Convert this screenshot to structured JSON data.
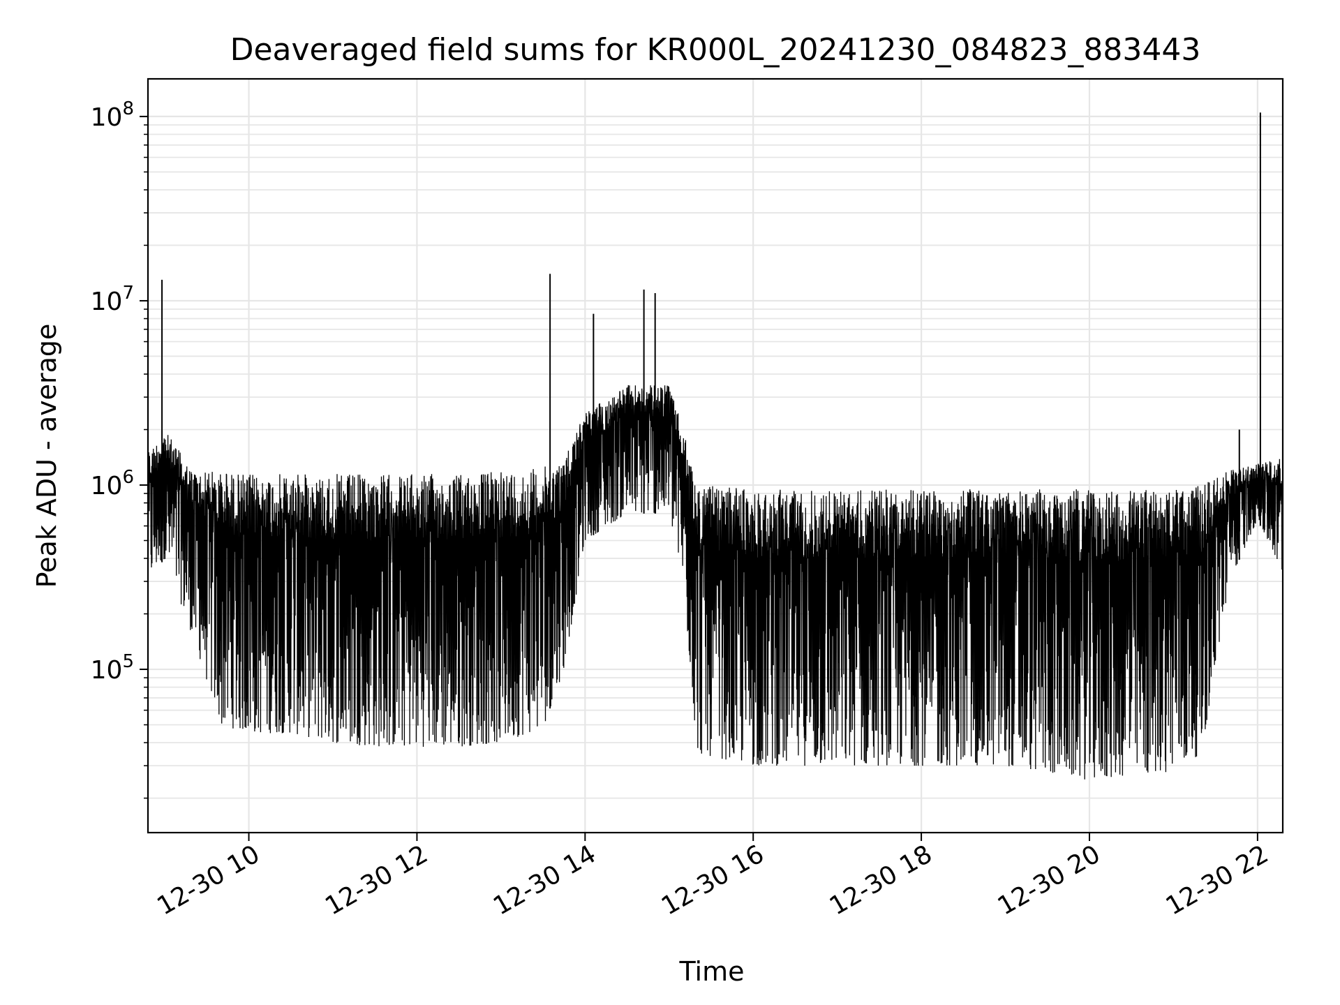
{
  "chart_data": {
    "type": "line",
    "title": "Deaveraged field sums for KR000L_20241230_084823_883443",
    "xlabel": "Time",
    "ylabel": "Peak ADU - average",
    "yscale": "log",
    "ylim": [
      13000,
      160000000
    ],
    "xlim": [
      "12-30 08:48",
      "12-30 22:18"
    ],
    "grid": true,
    "line_color": "#000000",
    "x_ticks": [
      "12-30 10",
      "12-30 12",
      "12-30 14",
      "12-30 16",
      "12-30 18",
      "12-30 20",
      "12-30 22"
    ],
    "y_ticks": [
      {
        "base": "10",
        "exp": "5",
        "value": 100000
      },
      {
        "base": "10",
        "exp": "6",
        "value": 1000000
      },
      {
        "base": "10",
        "exp": "7",
        "value": 10000000
      },
      {
        "base": "10",
        "exp": "8",
        "value": 100000000
      }
    ],
    "series": [
      {
        "values_desc": "envelope",
        "x": [
          "12-30 08:48",
          "12-30 09:00",
          "12-30 09:20",
          "12-30 09:40",
          "12-30 10:00",
          "12-30 10:30",
          "12-30 11:00",
          "12-30 11:30",
          "12-30 12:00",
          "12-30 12:30",
          "12-30 13:00",
          "12-30 13:30",
          "12-30 13:45",
          "12-30 14:00",
          "12-30 14:30",
          "12-30 15:00",
          "12-30 15:10",
          "12-30 15:20",
          "12-30 16:00",
          "12-30 17:00",
          "12-30 18:00",
          "12-30 19:00",
          "12-30 20:00",
          "12-30 21:00",
          "12-30 21:20",
          "12-30 21:40",
          "12-30 22:00",
          "12-30 22:18"
        ],
        "upper": [
          1500000,
          2000000,
          1200000,
          1200000,
          1150000,
          1150000,
          1150000,
          1150000,
          1150000,
          1150000,
          1200000,
          1250000,
          1400000,
          2500000,
          3500000,
          3500000,
          2000000,
          1000000,
          950000,
          950000,
          950000,
          950000,
          950000,
          950000,
          1000000,
          1200000,
          1300000,
          1400000
        ],
        "lower": [
          300000,
          400000,
          150000,
          50000,
          45000,
          45000,
          40000,
          38000,
          38000,
          38000,
          40000,
          48000,
          100000,
          500000,
          700000,
          700000,
          300000,
          35000,
          30000,
          30000,
          30000,
          30000,
          25000,
          28000,
          35000,
          300000,
          650000,
          320000
        ]
      }
    ],
    "spikes": [
      {
        "x": "12-30 08:58",
        "y": 13000000
      },
      {
        "x": "12-30 13:35",
        "y": 14000000
      },
      {
        "x": "12-30 14:06",
        "y": 8500000
      },
      {
        "x": "12-30 14:42",
        "y": 11500000
      },
      {
        "x": "12-30 14:50",
        "y": 11000000
      },
      {
        "x": "12-30 21:47",
        "y": 2000000
      },
      {
        "x": "12-30 22:02",
        "y": 105000000
      }
    ]
  }
}
